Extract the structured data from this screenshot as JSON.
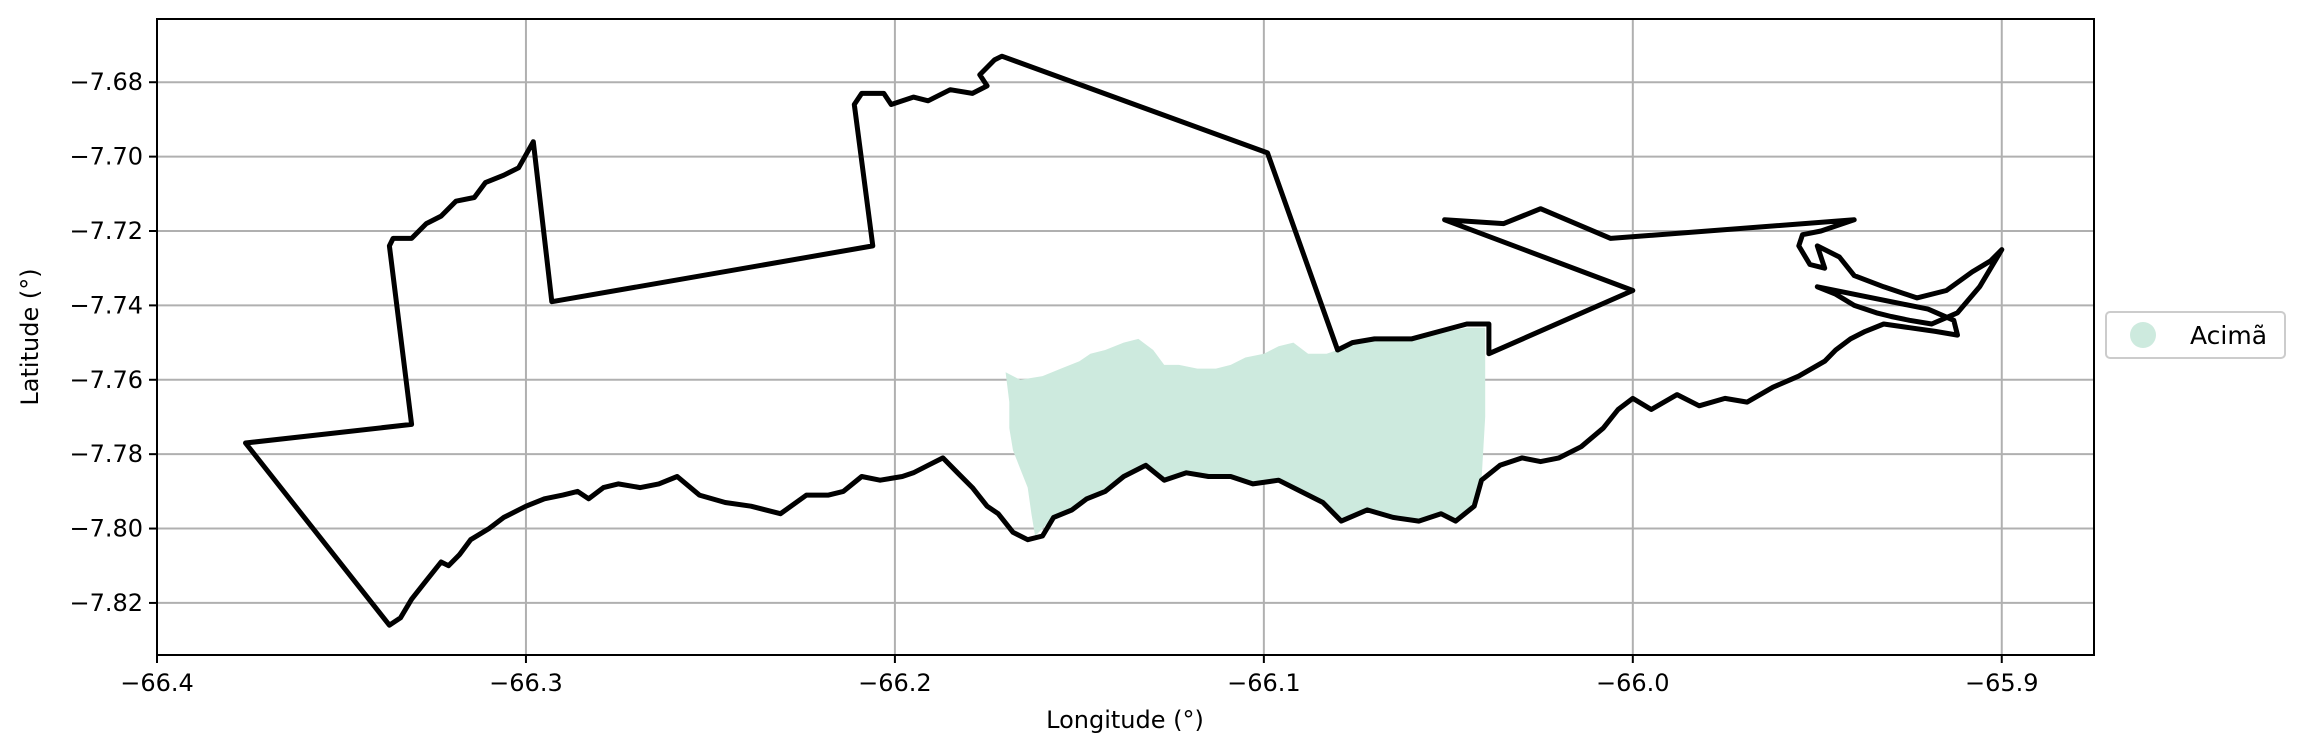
{
  "chart_data": {
    "type": "map",
    "xlabel": "Longitude (°)",
    "ylabel": "Latitude (°)",
    "xlim": [
      -66.4,
      -65.875
    ],
    "ylim": [
      -7.834,
      -7.663
    ],
    "xticks": [
      -66.4,
      -66.3,
      -66.2,
      -66.1,
      -66.0,
      -65.9
    ],
    "xtick_labels": [
      "−66.4",
      "−66.3",
      "−66.2",
      "−66.1",
      "−66.0",
      "−65.9"
    ],
    "yticks": [
      -7.68,
      -7.7,
      -7.72,
      -7.74,
      -7.76,
      -7.78,
      -7.8,
      -7.82
    ],
    "ytick_labels": [
      "−7.68",
      "−7.70",
      "−7.72",
      "−7.74",
      "−7.76",
      "−7.78",
      "−7.80",
      "−7.82"
    ],
    "grid": true,
    "legend": {
      "placement": "right",
      "entries": [
        {
          "label": "Acimã",
          "color": "#cdeade"
        }
      ]
    },
    "boundary_color": "#000000",
    "boundary": [
      [
        -66.376,
        -7.777
      ],
      [
        -66.331,
        -7.772
      ],
      [
        -66.337,
        -7.724
      ],
      [
        -66.336,
        -7.722
      ],
      [
        -66.331,
        -7.722
      ],
      [
        -66.327,
        -7.718
      ],
      [
        -66.323,
        -7.716
      ],
      [
        -66.319,
        -7.712
      ],
      [
        -66.314,
        -7.711
      ],
      [
        -66.311,
        -7.707
      ],
      [
        -66.306,
        -7.705
      ],
      [
        -66.302,
        -7.703
      ],
      [
        -66.298,
        -7.696
      ],
      [
        -66.293,
        -7.739
      ],
      [
        -66.206,
        -7.724
      ],
      [
        -66.211,
        -7.686
      ],
      [
        -66.209,
        -7.683
      ],
      [
        -66.203,
        -7.683
      ],
      [
        -66.201,
        -7.686
      ],
      [
        -66.195,
        -7.684
      ],
      [
        -66.191,
        -7.685
      ],
      [
        -66.185,
        -7.682
      ],
      [
        -66.179,
        -7.683
      ],
      [
        -66.175,
        -7.681
      ],
      [
        -66.177,
        -7.678
      ],
      [
        -66.175,
        -7.676
      ],
      [
        -66.173,
        -7.674
      ],
      [
        -66.171,
        -7.673
      ],
      [
        -66.099,
        -7.699
      ],
      [
        -66.08,
        -7.752
      ],
      [
        -66.076,
        -7.75
      ],
      [
        -66.07,
        -7.749
      ],
      [
        -66.06,
        -7.749
      ],
      [
        -66.045,
        -7.745
      ],
      [
        -66.039,
        -7.745
      ],
      [
        -66.039,
        -7.753
      ],
      [
        -66.0,
        -7.736
      ],
      [
        -66.051,
        -7.717
      ],
      [
        -66.035,
        -7.718
      ],
      [
        -66.025,
        -7.714
      ],
      [
        -66.006,
        -7.722
      ],
      [
        -65.94,
        -7.717
      ],
      [
        -65.949,
        -7.72
      ],
      [
        -65.954,
        -7.721
      ],
      [
        -65.955,
        -7.724
      ],
      [
        -65.952,
        -7.729
      ],
      [
        -65.948,
        -7.73
      ],
      [
        -65.95,
        -7.724
      ],
      [
        -65.944,
        -7.727
      ],
      [
        -65.94,
        -7.732
      ],
      [
        -65.932,
        -7.735
      ],
      [
        -65.923,
        -7.738
      ],
      [
        -65.915,
        -7.736
      ],
      [
        -65.908,
        -7.731
      ],
      [
        -65.903,
        -7.728
      ],
      [
        -65.9,
        -7.725
      ],
      [
        -65.906,
        -7.735
      ],
      [
        -65.912,
        -7.742
      ],
      [
        -65.919,
        -7.745
      ],
      [
        -65.925,
        -7.744
      ],
      [
        -65.93,
        -7.743
      ],
      [
        -65.934,
        -7.742
      ],
      [
        -65.94,
        -7.74
      ],
      [
        -65.945,
        -7.737
      ],
      [
        -65.95,
        -7.735
      ],
      [
        -65.92,
        -7.741
      ],
      [
        -65.913,
        -7.744
      ],
      [
        -65.912,
        -7.748
      ],
      [
        -65.918,
        -7.747
      ],
      [
        -65.925,
        -7.746
      ],
      [
        -65.932,
        -7.745
      ],
      [
        -65.937,
        -7.747
      ],
      [
        -65.941,
        -7.749
      ],
      [
        -65.945,
        -7.752
      ],
      [
        -65.948,
        -7.755
      ],
      [
        -65.955,
        -7.759
      ],
      [
        -65.962,
        -7.762
      ],
      [
        -65.969,
        -7.766
      ],
      [
        -65.975,
        -7.765
      ],
      [
        -65.982,
        -7.767
      ],
      [
        -65.988,
        -7.764
      ],
      [
        -65.995,
        -7.768
      ],
      [
        -66.0,
        -7.765
      ],
      [
        -66.004,
        -7.768
      ],
      [
        -66.008,
        -7.773
      ],
      [
        -66.014,
        -7.778
      ],
      [
        -66.02,
        -7.781
      ],
      [
        -66.025,
        -7.782
      ],
      [
        -66.03,
        -7.781
      ],
      [
        -66.036,
        -7.783
      ],
      [
        -66.041,
        -7.787
      ],
      [
        -66.043,
        -7.794
      ],
      [
        -66.048,
        -7.798
      ],
      [
        -66.052,
        -7.796
      ],
      [
        -66.058,
        -7.798
      ],
      [
        -66.065,
        -7.797
      ],
      [
        -66.072,
        -7.795
      ],
      [
        -66.079,
        -7.798
      ],
      [
        -66.084,
        -7.793
      ],
      [
        -66.09,
        -7.79
      ],
      [
        -66.096,
        -7.787
      ],
      [
        -66.103,
        -7.788
      ],
      [
        -66.109,
        -7.786
      ],
      [
        -66.115,
        -7.786
      ],
      [
        -66.121,
        -7.785
      ],
      [
        -66.127,
        -7.787
      ],
      [
        -66.132,
        -7.783
      ],
      [
        -66.138,
        -7.786
      ],
      [
        -66.143,
        -7.79
      ],
      [
        -66.148,
        -7.792
      ],
      [
        -66.152,
        -7.795
      ],
      [
        -66.157,
        -7.797
      ],
      [
        -66.16,
        -7.802
      ],
      [
        -66.164,
        -7.803
      ],
      [
        -66.168,
        -7.801
      ],
      [
        -66.172,
        -7.796
      ],
      [
        -66.175,
        -7.794
      ],
      [
        -66.179,
        -7.789
      ],
      [
        -66.183,
        -7.785
      ],
      [
        -66.187,
        -7.781
      ],
      [
        -66.191,
        -7.783
      ],
      [
        -66.195,
        -7.785
      ],
      [
        -66.198,
        -7.786
      ],
      [
        -66.204,
        -7.787
      ],
      [
        -66.209,
        -7.786
      ],
      [
        -66.214,
        -7.79
      ],
      [
        -66.218,
        -7.791
      ],
      [
        -66.224,
        -7.791
      ],
      [
        -66.231,
        -7.796
      ],
      [
        -66.239,
        -7.794
      ],
      [
        -66.246,
        -7.793
      ],
      [
        -66.253,
        -7.791
      ],
      [
        -66.259,
        -7.786
      ],
      [
        -66.264,
        -7.788
      ],
      [
        -66.269,
        -7.789
      ],
      [
        -66.275,
        -7.788
      ],
      [
        -66.279,
        -7.789
      ],
      [
        -66.283,
        -7.792
      ],
      [
        -66.286,
        -7.79
      ],
      [
        -66.29,
        -7.791
      ],
      [
        -66.295,
        -7.792
      ],
      [
        -66.3,
        -7.794
      ],
      [
        -66.306,
        -7.797
      ],
      [
        -66.31,
        -7.8
      ],
      [
        -66.315,
        -7.803
      ],
      [
        -66.318,
        -7.807
      ],
      [
        -66.321,
        -7.81
      ],
      [
        -66.323,
        -7.809
      ],
      [
        -66.327,
        -7.814
      ],
      [
        -66.331,
        -7.819
      ],
      [
        -66.334,
        -7.824
      ],
      [
        -66.337,
        -7.826
      ],
      [
        -66.376,
        -7.777
      ]
    ],
    "area": [
      [
        -66.17,
        -7.758
      ],
      [
        -66.166,
        -7.76
      ],
      [
        -66.16,
        -7.759
      ],
      [
        -66.155,
        -7.757
      ],
      [
        -66.15,
        -7.755
      ],
      [
        -66.147,
        -7.753
      ],
      [
        -66.143,
        -7.752
      ],
      [
        -66.138,
        -7.75
      ],
      [
        -66.134,
        -7.749
      ],
      [
        -66.13,
        -7.752
      ],
      [
        -66.127,
        -7.756
      ],
      [
        -66.123,
        -7.756
      ],
      [
        -66.118,
        -7.757
      ],
      [
        -66.113,
        -7.757
      ],
      [
        -66.109,
        -7.756
      ],
      [
        -66.105,
        -7.754
      ],
      [
        -66.1,
        -7.753
      ],
      [
        -66.096,
        -7.751
      ],
      [
        -66.092,
        -7.75
      ],
      [
        -66.088,
        -7.753
      ],
      [
        -66.083,
        -7.753
      ],
      [
        -66.08,
        -7.752
      ],
      [
        -66.076,
        -7.75
      ],
      [
        -66.07,
        -7.749
      ],
      [
        -66.06,
        -7.749
      ],
      [
        -66.05,
        -7.747
      ],
      [
        -66.045,
        -7.746
      ],
      [
        -66.04,
        -7.746
      ],
      [
        -66.04,
        -7.77
      ],
      [
        -66.041,
        -7.787
      ],
      [
        -66.043,
        -7.794
      ],
      [
        -66.048,
        -7.798
      ],
      [
        -66.052,
        -7.796
      ],
      [
        -66.058,
        -7.798
      ],
      [
        -66.065,
        -7.797
      ],
      [
        -66.072,
        -7.795
      ],
      [
        -66.079,
        -7.798
      ],
      [
        -66.084,
        -7.793
      ],
      [
        -66.09,
        -7.79
      ],
      [
        -66.096,
        -7.787
      ],
      [
        -66.103,
        -7.788
      ],
      [
        -66.109,
        -7.786
      ],
      [
        -66.115,
        -7.786
      ],
      [
        -66.121,
        -7.785
      ],
      [
        -66.127,
        -7.787
      ],
      [
        -66.132,
        -7.783
      ],
      [
        -66.138,
        -7.786
      ],
      [
        -66.143,
        -7.79
      ],
      [
        -66.148,
        -7.792
      ],
      [
        -66.152,
        -7.795
      ],
      [
        -66.157,
        -7.797
      ],
      [
        -66.16,
        -7.8
      ],
      [
        -66.162,
        -7.802
      ],
      [
        -66.163,
        -7.796
      ],
      [
        -66.164,
        -7.789
      ],
      [
        -66.166,
        -7.784
      ],
      [
        -66.168,
        -7.779
      ],
      [
        -66.169,
        -7.773
      ],
      [
        -66.169,
        -7.766
      ],
      [
        -66.17,
        -7.758
      ]
    ]
  }
}
